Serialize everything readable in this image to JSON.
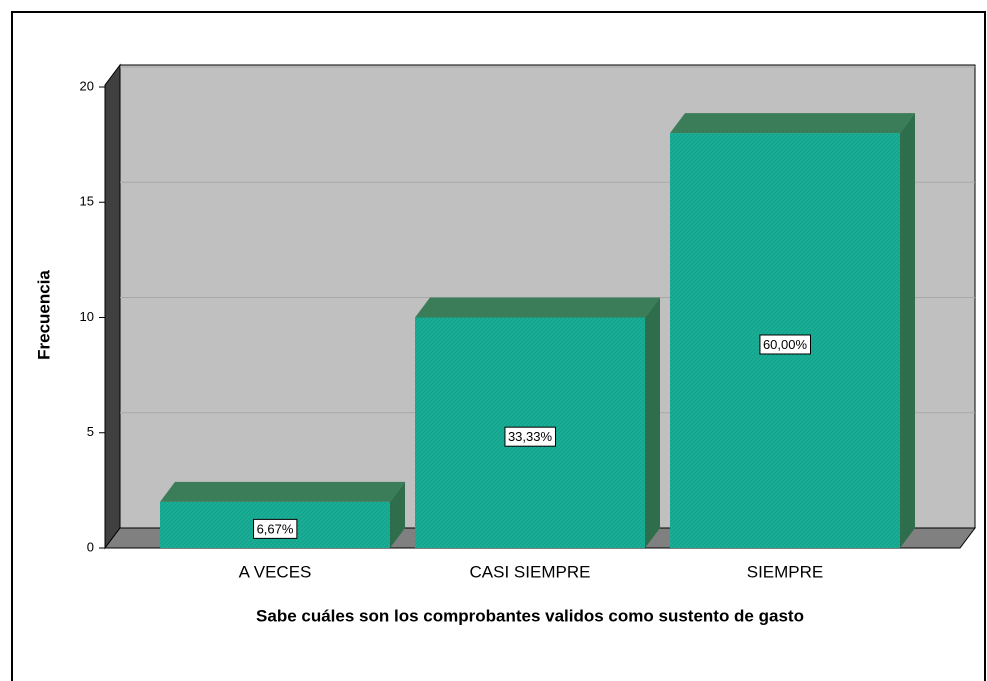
{
  "chart_data": {
    "type": "bar3d",
    "x_label": "Sabe cuáles son los comprobantes validos como sustento de gasto",
    "y_label": "Frecuencia",
    "categories": [
      "A VECES",
      "CASI SIEMPRE",
      "SIEMPRE"
    ],
    "values": [
      2,
      10,
      18
    ],
    "percent_labels": [
      "6,67%",
      "33,33%",
      "60,00%"
    ],
    "color": "#1aae96",
    "ylim": [
      0,
      20
    ],
    "yticks": [
      0,
      5,
      10,
      15,
      20
    ],
    "grid": true
  }
}
